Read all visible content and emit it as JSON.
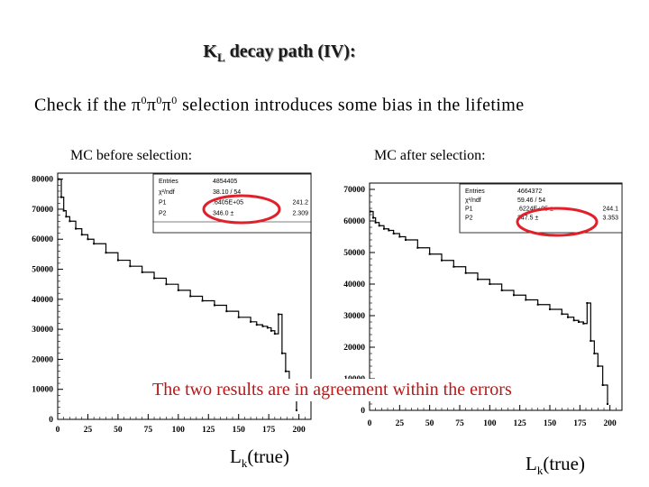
{
  "slide": {
    "title_main": "K",
    "title_sub": "L",
    "title_rest": " decay path (IV):",
    "subtitle_parts": [
      "Check if  the π",
      "0",
      "π",
      "0",
      "π",
      "0",
      " selection introduces some bias in the lifetime"
    ],
    "label_left": "MC before selection:",
    "label_right": "MC after selection:",
    "overlay_text": "The two results are in agreement within the errors",
    "xtitle_main": "L",
    "xtitle_sub": "k",
    "xtitle_rest": "(true)"
  },
  "chart_data": [
    {
      "type": "line",
      "title": "MC before selection:",
      "xlabel": "Lk(true)",
      "xlim": [
        0,
        210
      ],
      "ylim": [
        0,
        82000
      ],
      "xticks": [
        "0",
        "25",
        "50",
        "75",
        "100",
        "125",
        "150",
        "175",
        "200"
      ],
      "xtick_values": [
        0,
        25,
        50,
        75,
        100,
        125,
        150,
        175,
        200
      ],
      "yticks": [
        "0",
        "10000",
        "20000",
        "30000",
        "40000",
        "50000",
        "60000",
        "70000",
        "80000"
      ],
      "ytick_values": [
        0,
        10000,
        20000,
        30000,
        40000,
        50000,
        60000,
        70000,
        80000
      ],
      "x": [
        1,
        3,
        5,
        7,
        10,
        15,
        20,
        25,
        30,
        40,
        50,
        60,
        70,
        80,
        90,
        100,
        110,
        120,
        130,
        140,
        150,
        160,
        165,
        170,
        174,
        177,
        180,
        183,
        186,
        189,
        192,
        195,
        198
      ],
      "y": [
        80000,
        74000,
        69500,
        67500,
        66000,
        63500,
        61500,
        60000,
        58500,
        55500,
        53000,
        51000,
        49000,
        47000,
        45000,
        43000,
        41000,
        39500,
        38000,
        36000,
        34000,
        32500,
        31500,
        31000,
        30500,
        29500,
        28500,
        35000,
        22000,
        16000,
        12000,
        8000,
        3000
      ],
      "stats": [
        {
          "name": "Entries",
          "value": "4854405",
          "error": ""
        },
        {
          "name": "χ²/ndf",
          "value": "38.10   /   54",
          "error": ""
        },
        {
          "name": "P1",
          "value": ".6405E+05",
          "error": "241.2"
        },
        {
          "name": "P2",
          "value": "346.0  ±",
          "error": "2.309"
        }
      ]
    },
    {
      "type": "line",
      "title": "MC after selection:",
      "xlabel": "Lk(true)",
      "xlim": [
        0,
        210
      ],
      "ylim": [
        0,
        72000
      ],
      "xticks": [
        "0",
        "25",
        "50",
        "75",
        "100",
        "125",
        "150",
        "175",
        "200"
      ],
      "xtick_values": [
        0,
        25,
        50,
        75,
        100,
        125,
        150,
        175,
        200
      ],
      "yticks": [
        "0",
        "10000",
        "20000",
        "30000",
        "40000",
        "50000",
        "60000",
        "70000"
      ],
      "ytick_values": [
        0,
        10000,
        20000,
        30000,
        40000,
        50000,
        60000,
        70000
      ],
      "x": [
        1,
        3,
        5,
        8,
        12,
        16,
        20,
        25,
        30,
        40,
        50,
        60,
        70,
        80,
        90,
        100,
        110,
        120,
        130,
        140,
        150,
        160,
        165,
        170,
        174,
        178,
        181,
        184,
        187,
        190,
        194,
        198
      ],
      "y": [
        63000,
        61000,
        59500,
        58500,
        57500,
        57000,
        56000,
        55000,
        54000,
        51500,
        49500,
        47500,
        45500,
        43500,
        41500,
        40000,
        38000,
        36500,
        35000,
        33500,
        32000,
        30500,
        29500,
        28500,
        28000,
        27500,
        34000,
        22000,
        18000,
        14000,
        8000,
        2000
      ],
      "stats": [
        {
          "name": "Entries",
          "value": "4664372",
          "error": ""
        },
        {
          "name": "χ²/ndf",
          "value": "59.46   /   54",
          "error": ""
        },
        {
          "name": "P1",
          "value": ".6224E+05 ±",
          "error": "244.1"
        },
        {
          "name": "P2",
          "value": "347.5 ±",
          "error": "3.353"
        }
      ]
    }
  ]
}
